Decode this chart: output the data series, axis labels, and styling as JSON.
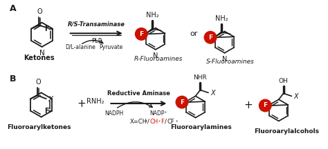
{
  "bg_color": "#ffffff",
  "label_A": "A",
  "label_B": "B",
  "ketones_label": "Ketones",
  "fluoroarylketones_label": "Fluoroarylketones",
  "r_fluoroamines_label": "R-Fluoroamines",
  "s_fluoroamines_label": "S-Fluoroamines",
  "fluoroarylamines_label": "Fluoroarylamines",
  "fluoroarylalcohols_label": "Fluoroarylalcohols",
  "arrow_text_top_A": "R/S-Transaminase",
  "arrow_text_mid_A": "PLP",
  "arrow_text_bot_A1": "D/L-alanine",
  "arrow_text_bot_A2": "Pyruvate",
  "arrow_text_top_B": "Reductive Aminase",
  "arrow_text_bot_B1": "NADPH",
  "arrow_text_bot_B2": "NADP⁺",
  "or_text": "or",
  "plus_B": "+",
  "rnh2_text": "RNH₂",
  "nh2_text": "NH₂",
  "nhr_text": "NHR",
  "oh_text": "OH",
  "f_circle_color": "#cc1100",
  "f_text_color": "#ffffff",
  "bond_color": "#1a1a1a",
  "text_color": "#1a1a1a",
  "red_color": "#cc1100"
}
